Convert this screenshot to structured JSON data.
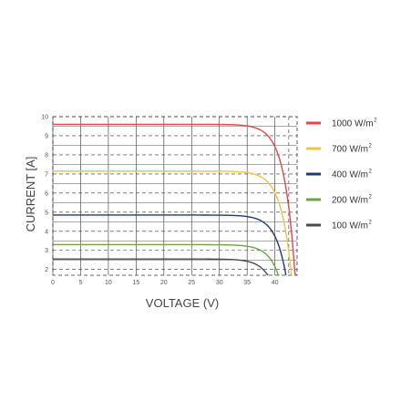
{
  "chart_data": {
    "type": "line",
    "xlabel": "VOLTAGE (V)",
    "ylabel": "CURRENT [A]",
    "xlim": [
      0,
      44
    ],
    "ylim": [
      1.7,
      10
    ],
    "x_ticks": [
      "0",
      "5",
      "10",
      "15",
      "20",
      "25",
      "30",
      "35",
      "40"
    ],
    "y_ticks": [
      "2",
      "3",
      "4",
      "5",
      "6",
      "7",
      "8",
      "9",
      "10"
    ],
    "grid": true,
    "legend_position": "right",
    "unit_superscript": "2",
    "series": [
      {
        "name": "1000 W/m",
        "color": "#e0484f",
        "isc": 9.6,
        "voc": 44.0,
        "knee": 34.5
      },
      {
        "name": "700 W/m",
        "color": "#f7c242",
        "isc": 7.15,
        "voc": 43.5,
        "knee": 34.0
      },
      {
        "name": "400 W/m",
        "color": "#1f3a7a",
        "isc": 4.85,
        "voc": 42.8,
        "knee": 33.5
      },
      {
        "name": "200 W/m",
        "color": "#6aa544",
        "isc": 3.3,
        "voc": 42.0,
        "knee": 33.0
      },
      {
        "name": "100 W/m",
        "color": "#4a4a4a",
        "isc": 2.55,
        "voc": 40.8,
        "knee": 32.0
      }
    ]
  }
}
